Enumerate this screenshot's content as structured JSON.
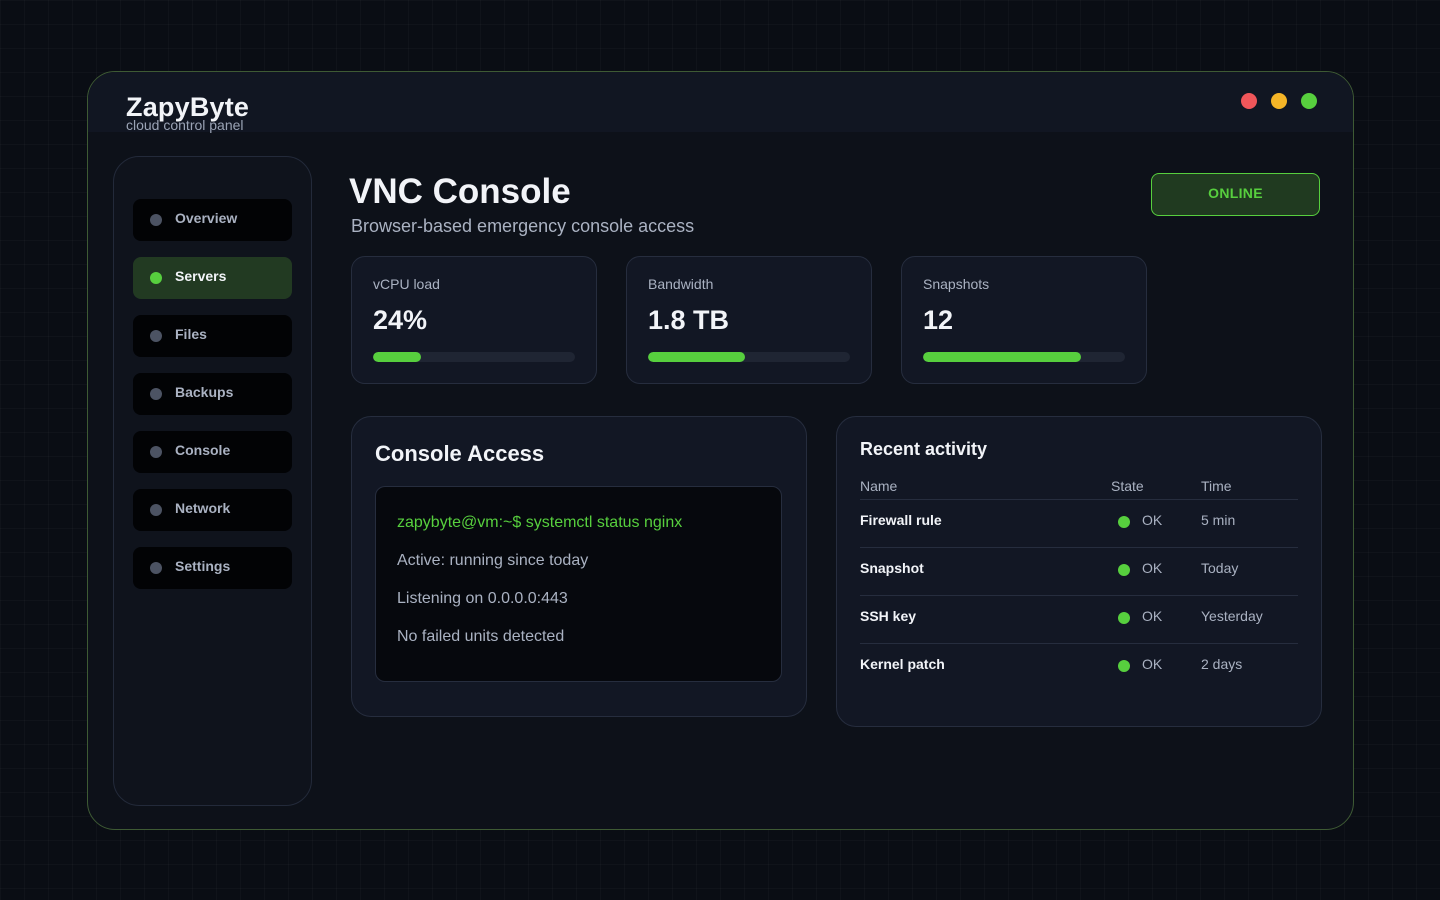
{
  "brand": {
    "name": "ZapyByte",
    "subtitle": "cloud control panel"
  },
  "colors": {
    "accent": "#57cf3e",
    "close": "#f0565a",
    "minimize": "#f5b527",
    "maximize": "#57cf3e"
  },
  "sidebar": {
    "items": [
      {
        "label": "Overview",
        "active": false
      },
      {
        "label": "Servers",
        "active": true
      },
      {
        "label": "Files",
        "active": false
      },
      {
        "label": "Backups",
        "active": false
      },
      {
        "label": "Console",
        "active": false
      },
      {
        "label": "Network",
        "active": false
      },
      {
        "label": "Settings",
        "active": false
      }
    ]
  },
  "header": {
    "title": "VNC Console",
    "subtitle": "Browser-based emergency console access",
    "status": "ONLINE"
  },
  "stats": [
    {
      "label": "vCPU load",
      "value": "24%",
      "fill_percent": 24
    },
    {
      "label": "Bandwidth",
      "value": "1.8 TB",
      "fill_percent": 48
    },
    {
      "label": "Snapshots",
      "value": "12",
      "fill_percent": 78
    }
  ],
  "console": {
    "title": "Console Access",
    "lines": [
      "zapybyte@vm:~$ systemctl status nginx",
      "Active: running since today",
      "Listening on 0.0.0.0:443",
      "No failed units detected"
    ]
  },
  "activity": {
    "title": "Recent activity",
    "columns": [
      "Name",
      "State",
      "Time"
    ],
    "rows": [
      {
        "name": "Firewall rule",
        "state": "OK",
        "time": "5 min"
      },
      {
        "name": "Snapshot",
        "state": "OK",
        "time": "Today"
      },
      {
        "name": "SSH key",
        "state": "OK",
        "time": "Yesterday"
      },
      {
        "name": "Kernel patch",
        "state": "OK",
        "time": "2 days"
      }
    ]
  }
}
